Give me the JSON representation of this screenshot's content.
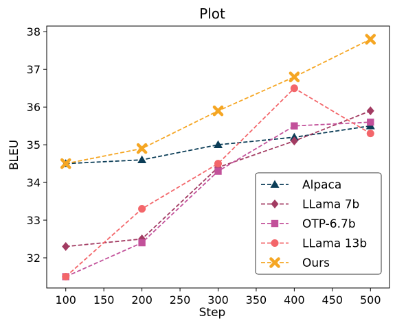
{
  "chart_data": {
    "type": "line",
    "title": "Plot",
    "xlabel": "Step",
    "ylabel": "BLEU",
    "x": [
      100,
      200,
      300,
      400,
      500
    ],
    "xlim": [
      75,
      525
    ],
    "ylim": [
      31.2,
      38.15
    ],
    "xticks": [
      "100",
      "150",
      "200",
      "250",
      "300",
      "350",
      "400",
      "450",
      "500"
    ],
    "yticks": [
      "32",
      "33",
      "34",
      "35",
      "36",
      "37",
      "38"
    ],
    "grid": false,
    "legend_position": "lower-right",
    "series": [
      {
        "name": "Alpaca",
        "color": "#0b3d57",
        "marker": "triangle",
        "values": [
          34.5,
          34.6,
          35.0,
          35.2,
          35.5
        ]
      },
      {
        "name": "LLama 7b",
        "color": "#a23b62",
        "marker": "diamond",
        "values": [
          32.3,
          32.5,
          34.4,
          35.1,
          35.9
        ]
      },
      {
        "name": "OTP-6.7b",
        "color": "#c2519a",
        "marker": "square",
        "values": [
          31.5,
          32.4,
          34.3,
          35.5,
          35.6
        ]
      },
      {
        "name": "LLama 13b",
        "color": "#f3666a",
        "marker": "circle",
        "values": [
          31.5,
          33.3,
          34.5,
          36.5,
          35.3
        ]
      },
      {
        "name": "Ours",
        "color": "#f5a623",
        "marker": "x",
        "values": [
          34.5,
          34.9,
          35.9,
          36.8,
          37.8
        ]
      }
    ]
  }
}
